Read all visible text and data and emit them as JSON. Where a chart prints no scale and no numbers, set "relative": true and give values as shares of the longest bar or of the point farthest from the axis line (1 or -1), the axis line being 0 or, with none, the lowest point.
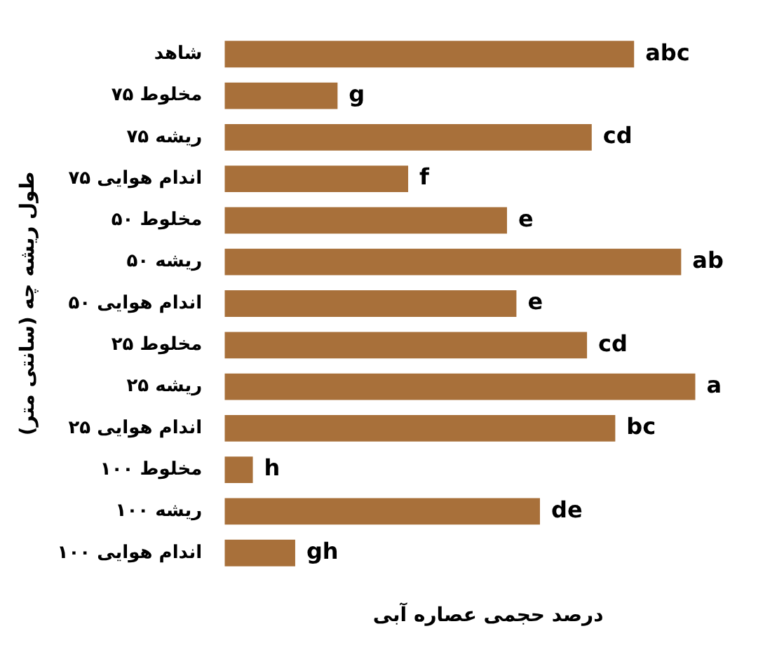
{
  "chart_data": {
    "type": "bar",
    "orientation": "horizontal",
    "relative": true,
    "xlabel": "درصد حجمی عصاره آبی",
    "ylabel": "طول ریشه چه (سانتی متر)",
    "categories": [
      "شاهد",
      "۷۵ مخلوط",
      "۷۵ ریشه",
      "۷۵ اندام هوایی",
      "۵۰ مخلوط",
      "۵۰ ریشه",
      "۵۰ اندام هوایی",
      "۲۵ مخلوط",
      "۲۵ ریشه",
      "۲۵ اندام هوایی",
      "۱۰۰ مخلوط",
      "۱۰۰ ریشه",
      "۱۰۰ اندام هوایی"
    ],
    "values": [
      0.87,
      0.24,
      0.78,
      0.39,
      0.6,
      0.97,
      0.62,
      0.77,
      1,
      0.83,
      0.06,
      0.67,
      0.15
    ],
    "annotations": [
      {
        "text": "abc",
        "x": 0.87,
        "y": "شاهد"
      },
      {
        "text": "g",
        "x": 0.24,
        "y": "۷۵ مخلوط"
      },
      {
        "text": "cd",
        "x": 0.78,
        "y": "۷۵ ریشه"
      },
      {
        "text": "f",
        "x": 0.39,
        "y": "۷۵ اندام هوایی"
      },
      {
        "text": "e",
        "x": 0.6,
        "y": "۵۰ مخلوط"
      },
      {
        "text": "ab",
        "x": 0.97,
        "y": "۵۰ ریشه"
      },
      {
        "text": "e",
        "x": 0.62,
        "y": "۵۰ اندام هوایی"
      },
      {
        "text": "cd",
        "x": 0.77,
        "y": "۲۵ مخلوط"
      },
      {
        "text": "a",
        "x": 1,
        "y": "۲۵ ریشه"
      },
      {
        "text": "bc",
        "x": 0.83,
        "y": "۲۵ اندام هوایی"
      },
      {
        "text": "h",
        "x": 0.06,
        "y": "۱۰۰ مخلوط"
      },
      {
        "text": "de",
        "x": 0.67,
        "y": "۱۰۰ ریشه"
      },
      {
        "text": "gh",
        "x": 0.15,
        "y": "۱۰۰ اندام هوایی"
      }
    ],
    "color": "#a8703a",
    "legend": false
  }
}
